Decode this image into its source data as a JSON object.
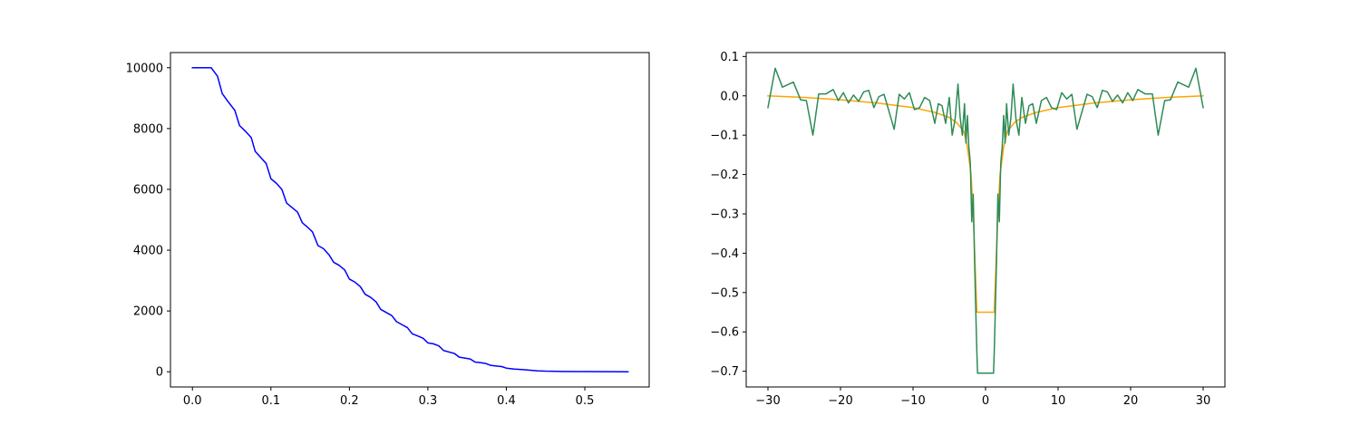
{
  "chart_data": [
    {
      "type": "line",
      "title": "",
      "xlabel": "",
      "ylabel": "",
      "xlim": [
        -0.028,
        0.582
      ],
      "ylim": [
        -500,
        10500
      ],
      "grid": false,
      "x_ticks": [
        0.0,
        0.1,
        0.2,
        0.3,
        0.4,
        0.5
      ],
      "x_tick_labels": [
        "0.0",
        "0.1",
        "0.2",
        "0.3",
        "0.4",
        "0.5"
      ],
      "y_ticks": [
        0,
        2000,
        4000,
        6000,
        8000,
        10000
      ],
      "y_tick_labels": [
        "0",
        "2000",
        "4000",
        "6000",
        "8000",
        "10000"
      ],
      "series": [
        {
          "color": "#0000ff",
          "points": [
            [
              0.0,
              10000
            ],
            [
              0.024,
              10000
            ],
            [
              0.032,
              9720
            ],
            [
              0.038,
              9150
            ],
            [
              0.045,
              8900
            ],
            [
              0.054,
              8600
            ],
            [
              0.06,
              8100
            ],
            [
              0.068,
              7900
            ],
            [
              0.075,
              7700
            ],
            [
              0.08,
              7250
            ],
            [
              0.087,
              7050
            ],
            [
              0.094,
              6850
            ],
            [
              0.1,
              6350
            ],
            [
              0.107,
              6200
            ],
            [
              0.114,
              6000
            ],
            [
              0.12,
              5550
            ],
            [
              0.127,
              5400
            ],
            [
              0.134,
              5250
            ],
            [
              0.14,
              4900
            ],
            [
              0.147,
              4750
            ],
            [
              0.153,
              4600
            ],
            [
              0.16,
              4150
            ],
            [
              0.167,
              4050
            ],
            [
              0.174,
              3850
            ],
            [
              0.18,
              3600
            ],
            [
              0.187,
              3500
            ],
            [
              0.194,
              3350
            ],
            [
              0.2,
              3050
            ],
            [
              0.207,
              2950
            ],
            [
              0.214,
              2800
            ],
            [
              0.22,
              2550
            ],
            [
              0.227,
              2450
            ],
            [
              0.234,
              2300
            ],
            [
              0.24,
              2050
            ],
            [
              0.247,
              1950
            ],
            [
              0.254,
              1850
            ],
            [
              0.26,
              1650
            ],
            [
              0.267,
              1550
            ],
            [
              0.274,
              1450
            ],
            [
              0.28,
              1250
            ],
            [
              0.287,
              1180
            ],
            [
              0.294,
              1100
            ],
            [
              0.3,
              950
            ],
            [
              0.307,
              920
            ],
            [
              0.314,
              850
            ],
            [
              0.32,
              700
            ],
            [
              0.327,
              650
            ],
            [
              0.334,
              600
            ],
            [
              0.34,
              480
            ],
            [
              0.347,
              450
            ],
            [
              0.354,
              420
            ],
            [
              0.36,
              320
            ],
            [
              0.367,
              300
            ],
            [
              0.374,
              270
            ],
            [
              0.38,
              210
            ],
            [
              0.387,
              190
            ],
            [
              0.394,
              170
            ],
            [
              0.4,
              120
            ],
            [
              0.41,
              90
            ],
            [
              0.42,
              75
            ],
            [
              0.43,
              50
            ],
            [
              0.44,
              30
            ],
            [
              0.45,
              20
            ],
            [
              0.47,
              12
            ],
            [
              0.5,
              5
            ],
            [
              0.53,
              2
            ],
            [
              0.555,
              0
            ]
          ]
        }
      ]
    },
    {
      "type": "line",
      "title": "",
      "xlabel": "",
      "ylabel": "",
      "xlim": [
        -33,
        33
      ],
      "ylim": [
        -0.74,
        0.11
      ],
      "grid": false,
      "x_ticks": [
        -30,
        -20,
        -10,
        0,
        10,
        20,
        30
      ],
      "x_tick_labels": [
        "−30",
        "−20",
        "−10",
        "0",
        "10",
        "20",
        "30"
      ],
      "y_ticks": [
        -0.7,
        -0.6,
        -0.5,
        -0.4,
        -0.3,
        -0.2,
        -0.1,
        0.0,
        0.1
      ],
      "y_tick_labels": [
        "−0.7",
        "−0.6",
        "−0.5",
        "−0.4",
        "−0.3",
        "−0.2",
        "−0.1",
        "0.0",
        "0.1"
      ],
      "series": [
        {
          "color": "#ffa500",
          "points": [
            [
              -30,
              0.0
            ],
            [
              -25,
              -0.004
            ],
            [
              -20,
              -0.01
            ],
            [
              -15,
              -0.018
            ],
            [
              -10,
              -0.03
            ],
            [
              -7,
              -0.042
            ],
            [
              -5,
              -0.055
            ],
            [
              -4,
              -0.068
            ],
            [
              -3,
              -0.09
            ],
            [
              -2.5,
              -0.13
            ],
            [
              -2,
              -0.2
            ],
            [
              -1.7,
              -0.3
            ],
            [
              -1.5,
              -0.4
            ],
            [
              -1.2,
              -0.55
            ],
            [
              1.2,
              -0.55
            ],
            [
              1.5,
              -0.4
            ],
            [
              1.7,
              -0.3
            ],
            [
              2,
              -0.2
            ],
            [
              2.5,
              -0.13
            ],
            [
              3,
              -0.09
            ],
            [
              4,
              -0.068
            ],
            [
              5,
              -0.055
            ],
            [
              7,
              -0.042
            ],
            [
              10,
              -0.03
            ],
            [
              15,
              -0.018
            ],
            [
              20,
              -0.01
            ],
            [
              25,
              -0.004
            ],
            [
              30,
              0.0
            ]
          ]
        },
        {
          "color": "#2e8b57",
          "points": [
            [
              -30,
              -0.03
            ],
            [
              -29,
              0.07
            ],
            [
              -28,
              0.022
            ],
            [
              -26.5,
              0.035
            ],
            [
              -25.5,
              -0.01
            ],
            [
              -24.7,
              -0.012
            ],
            [
              -23.8,
              -0.1
            ],
            [
              -23,
              0.005
            ],
            [
              -22,
              0.005
            ],
            [
              -21,
              0.016
            ],
            [
              -20.3,
              -0.012
            ],
            [
              -19.6,
              0.008
            ],
            [
              -18.9,
              -0.018
            ],
            [
              -18.2,
              0.002
            ],
            [
              -17.5,
              -0.014
            ],
            [
              -16.8,
              0.01
            ],
            [
              -16.1,
              0.014
            ],
            [
              -15.4,
              -0.03
            ],
            [
              -14.7,
              -0.002
            ],
            [
              -14.0,
              0.004
            ],
            [
              -13.3,
              -0.04
            ],
            [
              -12.6,
              -0.085
            ],
            [
              -11.9,
              0.004
            ],
            [
              -11.2,
              -0.008
            ],
            [
              -10.5,
              0.008
            ],
            [
              -9.8,
              -0.035
            ],
            [
              -9.1,
              -0.03
            ],
            [
              -8.4,
              -0.004
            ],
            [
              -7.7,
              -0.012
            ],
            [
              -7.0,
              -0.07
            ],
            [
              -6.5,
              -0.02
            ],
            [
              -6.0,
              -0.025
            ],
            [
              -5.5,
              -0.07
            ],
            [
              -5.0,
              -0.004
            ],
            [
              -4.6,
              -0.1
            ],
            [
              -4.2,
              -0.06
            ],
            [
              -3.8,
              0.03
            ],
            [
              -3.5,
              -0.055
            ],
            [
              -3.2,
              -0.1
            ],
            [
              -2.9,
              -0.02
            ],
            [
              -2.7,
              -0.12
            ],
            [
              -2.5,
              -0.05
            ],
            [
              -2.3,
              -0.13
            ],
            [
              -2.1,
              -0.17
            ],
            [
              -1.9,
              -0.32
            ],
            [
              -1.7,
              -0.25
            ],
            [
              -1.5,
              -0.43
            ],
            [
              -1.3,
              -0.58
            ],
            [
              -1.2,
              -0.65
            ],
            [
              -1.1,
              -0.705
            ],
            [
              1.1,
              -0.705
            ],
            [
              1.2,
              -0.65
            ],
            [
              1.3,
              -0.58
            ],
            [
              1.5,
              -0.43
            ],
            [
              1.7,
              -0.25
            ],
            [
              1.9,
              -0.32
            ],
            [
              2.1,
              -0.17
            ],
            [
              2.3,
              -0.13
            ],
            [
              2.5,
              -0.05
            ],
            [
              2.7,
              -0.12
            ],
            [
              2.9,
              -0.02
            ],
            [
              3.2,
              -0.1
            ],
            [
              3.5,
              -0.055
            ],
            [
              3.8,
              0.03
            ],
            [
              4.2,
              -0.06
            ],
            [
              4.6,
              -0.1
            ],
            [
              5.0,
              -0.004
            ],
            [
              5.5,
              -0.07
            ],
            [
              6.0,
              -0.025
            ],
            [
              6.5,
              -0.02
            ],
            [
              7.0,
              -0.07
            ],
            [
              7.7,
              -0.012
            ],
            [
              8.4,
              -0.004
            ],
            [
              9.1,
              -0.03
            ],
            [
              9.8,
              -0.035
            ],
            [
              10.5,
              0.008
            ],
            [
              11.2,
              -0.008
            ],
            [
              11.9,
              0.004
            ],
            [
              12.6,
              -0.085
            ],
            [
              13.3,
              -0.04
            ],
            [
              14.0,
              0.004
            ],
            [
              14.7,
              -0.002
            ],
            [
              15.4,
              -0.03
            ],
            [
              16.1,
              0.014
            ],
            [
              16.8,
              0.01
            ],
            [
              17.5,
              -0.014
            ],
            [
              18.2,
              0.002
            ],
            [
              18.9,
              -0.018
            ],
            [
              19.6,
              0.008
            ],
            [
              20.3,
              -0.012
            ],
            [
              21,
              0.016
            ],
            [
              22,
              0.005
            ],
            [
              23,
              0.005
            ],
            [
              23.8,
              -0.1
            ],
            [
              24.7,
              -0.012
            ],
            [
              25.5,
              -0.01
            ],
            [
              26.5,
              0.035
            ],
            [
              28,
              0.022
            ],
            [
              29,
              0.07
            ],
            [
              30,
              -0.03
            ]
          ]
        }
      ]
    }
  ]
}
